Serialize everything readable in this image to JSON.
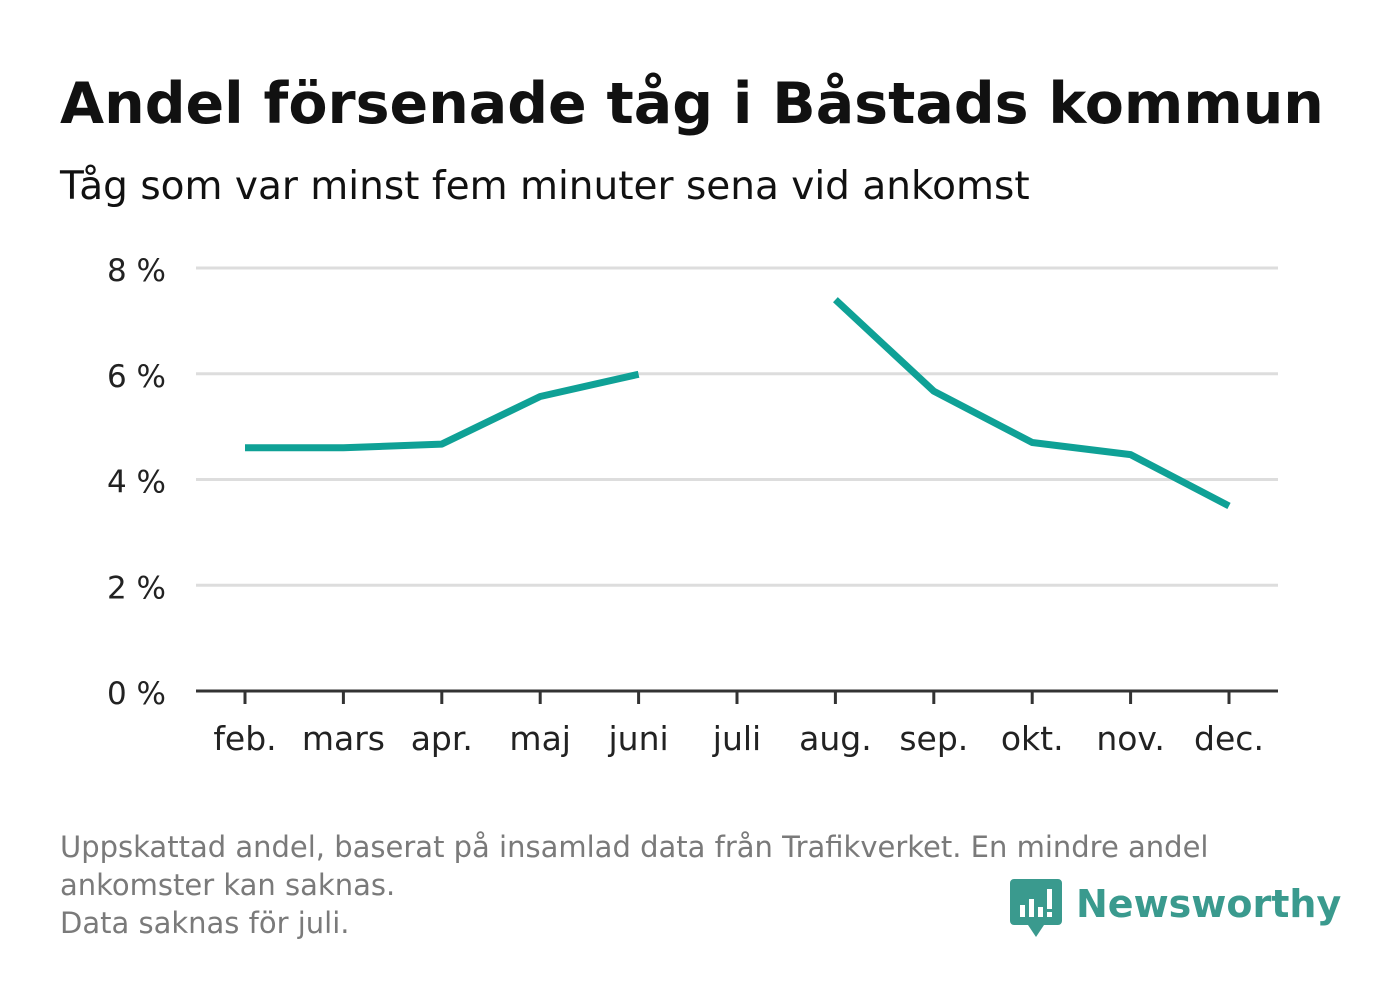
{
  "title": "Andel försenade tåg i Båstads kommun",
  "subtitle": "Tåg som var minst fem minuter sena vid ankomst",
  "chart_data": {
    "type": "line",
    "categories": [
      "feb.",
      "mars",
      "apr.",
      "maj",
      "juni",
      "juli",
      "aug.",
      "sep.",
      "okt.",
      "nov.",
      "dec."
    ],
    "series": [
      {
        "values": [
          4.6,
          4.6,
          4.67,
          5.57,
          5.99,
          null,
          7.4,
          5.67,
          4.7,
          4.47,
          3.5
        ]
      }
    ],
    "yticks": [
      0,
      2,
      4,
      6,
      8
    ],
    "ytick_labels": [
      "0 %",
      "2 %",
      "4 %",
      "6 %",
      "8 %"
    ],
    "ylim": [
      0,
      8
    ],
    "grid": true,
    "colors": {
      "line": "#0fa196",
      "grid": "#dddddd",
      "axis": "#333333",
      "tick_text": "#222222"
    }
  },
  "footnote": {
    "line1": "Uppskattad andel, baserat på insamlad data från Trafikverket. En mindre andel",
    "line2": "ankomster kan saknas.",
    "line3": "Data saknas för juli."
  },
  "logo": {
    "icon": "newsworthy-chart-bubble-icon",
    "text": "Newsworthy",
    "color": "#3a9a8e"
  }
}
